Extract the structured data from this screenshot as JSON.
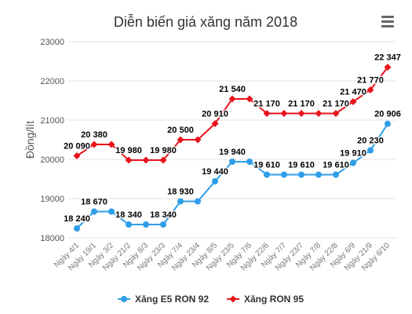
{
  "colors": {
    "e5": "#2f9ee8",
    "ron95": "#e8141c",
    "grid": "#e6e6e6",
    "axis_text": "#555555",
    "title": "#333333"
  },
  "menu": {
    "icon": "hamburger-menu-icon"
  },
  "chart_data": {
    "type": "line",
    "title": "Diễn biến giá xăng năm 2018",
    "xlabel": "",
    "ylabel": "Đồng/lít",
    "ylim": [
      18000,
      23000
    ],
    "yticks": [
      "18000",
      "19000",
      "20000",
      "21000",
      "22000",
      "23000"
    ],
    "grid": true,
    "legend_position": "bottom-center",
    "categories": [
      "Ngày 4/1",
      "Ngày 19/1",
      "Ngày 3/2",
      "Ngày 21/2",
      "Ngày 8/3",
      "Ngày 23/3",
      "Ngày 7/4",
      "Ngày 23/4",
      "Ngày 8/5",
      "Ngày 23/5",
      "Ngày 7/6",
      "Ngày 22/6",
      "Ngày 7/7",
      "Ngày 23/7",
      "Ngày 7/8",
      "Ngày 22/8",
      "Ngày 6/9",
      "Ngày 21/9",
      "Ngày 6/10"
    ],
    "series": [
      {
        "name": "Xăng E5 RON 92",
        "marker": "circle",
        "values": [
          18240,
          18670,
          18670,
          18340,
          18340,
          18340,
          18930,
          18930,
          19440,
          19940,
          19940,
          19610,
          19610,
          19610,
          19610,
          19610,
          19910,
          20230,
          20906
        ],
        "labels": [
          "18 240",
          "18 670",
          "",
          "18 340",
          "",
          "18 340",
          "18 930",
          "",
          "19 440",
          "19 940",
          "",
          "19 610",
          "",
          "19 610",
          "",
          "19 610",
          "19 910",
          "20 230",
          "20 906"
        ]
      },
      {
        "name": "Xăng RON 95",
        "marker": "diamond",
        "values": [
          20090,
          20380,
          20380,
          19980,
          19980,
          19980,
          20500,
          20500,
          20910,
          21540,
          21540,
          21170,
          21170,
          21170,
          21170,
          21170,
          21470,
          21770,
          22347
        ],
        "labels": [
          "20 090",
          "20 380",
          "",
          "19 980",
          "",
          "19 980",
          "20 500",
          "",
          "20 910",
          "21 540",
          "",
          "21 170",
          "",
          "21 170",
          "",
          "21 170",
          "21 470",
          "21 770",
          "22 347"
        ]
      }
    ]
  }
}
